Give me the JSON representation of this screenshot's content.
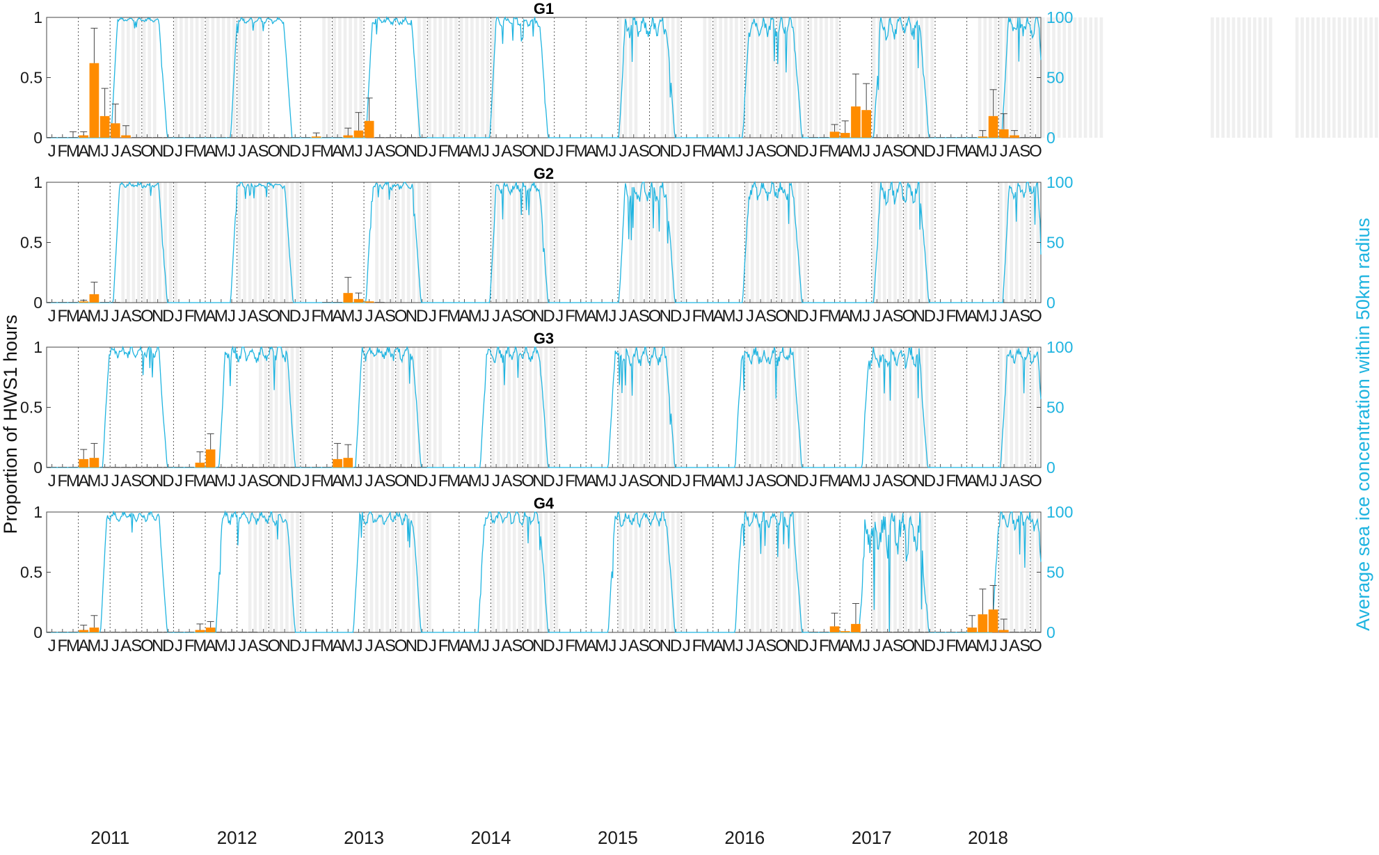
{
  "chart_data": {
    "type": "bar+line",
    "ylabel_left": "Proportion of HWS1 hours",
    "ylabel_right": "Average sea ice concentration within 50km radius",
    "left_yticks": [
      "0",
      "0.5",
      "1"
    ],
    "right_yticks": [
      "0",
      "50",
      "100"
    ],
    "ylim_left": [
      0,
      1
    ],
    "ylim_right": [
      0,
      100
    ],
    "month_letters": [
      "J",
      "F",
      "M",
      "A",
      "M",
      "J",
      "J",
      "A",
      "S",
      "O",
      "N",
      "D"
    ],
    "years": [
      "2011",
      "2012",
      "2013",
      "2014",
      "2015",
      "2016",
      "2017",
      "2018"
    ],
    "x_start": "2011-01",
    "x_end": "2018-10",
    "bar_color": "#ff8c00",
    "line_color": "#1fb4e0",
    "shade_color": "#efefef",
    "panels": [
      {
        "title": "G1",
        "shade_ranges": [
          [
            7,
            10
          ],
          [
            12,
            20
          ],
          [
            26,
            30
          ],
          [
            35,
            42
          ],
          [
            54,
            56
          ],
          [
            58,
            60
          ],
          [
            62,
            75
          ],
          [
            78,
            84
          ],
          [
            88,
            100
          ],
          [
            110,
            116
          ],
          [
            118,
            126
          ],
          [
            128,
            135
          ],
          [
            137,
            140
          ],
          [
            142,
            146
          ],
          [
            148,
            156
          ]
        ],
        "ice_periods": [
          [
            6.6,
            10.9,
            [
              97,
              99
            ]
          ],
          [
            17.9,
            22.7,
            [
              96,
              99
            ]
          ],
          [
            30.7,
            34.8,
            [
              95,
              99
            ]
          ],
          [
            42.4,
            46.9,
            [
              94,
              99
            ]
          ],
          [
            54.6,
            58.9,
            [
              86,
              97
            ]
          ],
          [
            66.3,
            70.9,
            [
              88,
              98
            ]
          ],
          [
            78.7,
            82.9,
            [
              86,
              98
            ]
          ],
          [
            90.8,
            94.1,
            [
              88,
              99
            ]
          ]
        ],
        "bars": [
          [
            1,
            0
          ],
          [
            2,
            0
          ],
          [
            3,
            0
          ],
          [
            4,
            0.02
          ],
          [
            5,
            0.62
          ],
          [
            6,
            0.18
          ],
          [
            7,
            0.12
          ],
          [
            8,
            0.02
          ],
          [
            9,
            0
          ],
          [
            10,
            0
          ],
          [
            11,
            0
          ],
          [
            12,
            0
          ],
          [
            13,
            0
          ],
          [
            14,
            0
          ],
          [
            15,
            0
          ],
          [
            16,
            0
          ],
          [
            17,
            0
          ],
          [
            18,
            0
          ],
          [
            19,
            0
          ],
          [
            20,
            0
          ],
          [
            21,
            0
          ],
          [
            22,
            0
          ],
          [
            23,
            0
          ],
          [
            24,
            0
          ],
          [
            25,
            0
          ],
          [
            26,
            0.01
          ],
          [
            27,
            0
          ],
          [
            28,
            0
          ],
          [
            29,
            0.02
          ],
          [
            30,
            0.06
          ],
          [
            31,
            0.14
          ],
          [
            32,
            0
          ],
          [
            33,
            0
          ],
          [
            34,
            0
          ],
          [
            35,
            0
          ],
          [
            36,
            0
          ],
          [
            73,
            0
          ],
          [
            74,
            0
          ],
          [
            75,
            0.05
          ],
          [
            76,
            0.04
          ],
          [
            77,
            0.26
          ],
          [
            78,
            0.23
          ],
          [
            79,
            0
          ],
          [
            80,
            0
          ],
          [
            81,
            0
          ],
          [
            82,
            0
          ],
          [
            83,
            0
          ],
          [
            84,
            0
          ],
          [
            85,
            0
          ],
          [
            86,
            0
          ],
          [
            87,
            0
          ],
          [
            88,
            0
          ],
          [
            89,
            0.01
          ],
          [
            90,
            0.18
          ],
          [
            91,
            0.07
          ],
          [
            92,
            0.02
          ],
          [
            93,
            0
          ],
          [
            94,
            0
          ]
        ],
        "errors": [
          [
            3,
            0.05
          ],
          [
            4,
            0.05
          ],
          [
            5,
            0.91
          ],
          [
            6,
            0.41
          ],
          [
            7,
            0.28
          ],
          [
            8,
            0.1
          ],
          [
            26,
            0.04
          ],
          [
            29,
            0.08
          ],
          [
            30,
            0.21
          ],
          [
            31,
            0.33
          ],
          [
            75,
            0.11
          ],
          [
            76,
            0.14
          ],
          [
            77,
            0.53
          ],
          [
            78,
            0.45
          ],
          [
            89,
            0.06
          ],
          [
            90,
            0.4
          ],
          [
            91,
            0.2
          ],
          [
            92,
            0.06
          ]
        ]
      },
      {
        "title": "G2",
        "shade_ranges": [
          [
            7,
            12
          ],
          [
            18,
            24
          ],
          [
            31,
            36
          ],
          [
            42,
            48
          ],
          [
            55,
            60
          ],
          [
            66,
            72
          ],
          [
            78,
            84
          ],
          [
            90,
            94
          ]
        ],
        "ice_periods": [
          [
            6.8,
            10.9,
            [
              96,
              99
            ]
          ],
          [
            17.9,
            22.8,
            [
              96,
              99
            ]
          ],
          [
            30.7,
            34.9,
            [
              95,
              99
            ]
          ],
          [
            42.4,
            46.9,
            [
              92,
              99
            ]
          ],
          [
            54.6,
            58.9,
            [
              86,
              97
            ]
          ],
          [
            66.3,
            70.9,
            [
              88,
              98
            ]
          ],
          [
            78.7,
            82.9,
            [
              86,
              98
            ]
          ],
          [
            90.9,
            94,
            [
              90,
              99
            ]
          ]
        ],
        "bars": [
          [
            1,
            0
          ],
          [
            2,
            0
          ],
          [
            3,
            0
          ],
          [
            4,
            0.01
          ],
          [
            5,
            0.07
          ],
          [
            6,
            0
          ],
          [
            7,
            0
          ],
          [
            27,
            0
          ],
          [
            28,
            0
          ],
          [
            29,
            0.08
          ],
          [
            30,
            0.03
          ],
          [
            31,
            0.01
          ],
          [
            32,
            0
          ]
        ],
        "errors": [
          [
            4,
            0.02
          ],
          [
            5,
            0.17
          ],
          [
            29,
            0.21
          ],
          [
            30,
            0.08
          ]
        ]
      },
      {
        "title": "G3",
        "shade_ranges": [
          [
            20,
            24
          ],
          [
            30,
            37
          ],
          [
            42,
            48
          ],
          [
            54,
            60
          ],
          [
            66,
            72
          ],
          [
            78,
            84
          ],
          [
            90,
            94
          ]
        ],
        "ice_periods": [
          [
            5.8,
            10.9,
            [
              93,
              99
            ]
          ],
          [
            16.8,
            23,
            [
              90,
              99
            ]
          ],
          [
            29.7,
            34.9,
            [
              91,
              99
            ]
          ],
          [
            41.5,
            46.9,
            [
              90,
              99
            ]
          ],
          [
            53.6,
            58.9,
            [
              88,
              98
            ]
          ],
          [
            65.6,
            70.9,
            [
              88,
              98
            ]
          ],
          [
            77.6,
            82.8,
            [
              86,
              98
            ]
          ],
          [
            90.7,
            94,
            [
              88,
              97
            ]
          ]
        ],
        "bars": [
          [
            1,
            0
          ],
          [
            2,
            0
          ],
          [
            3,
            0
          ],
          [
            4,
            0.07
          ],
          [
            5,
            0.08
          ],
          [
            6,
            0
          ],
          [
            7,
            0
          ],
          [
            8,
            0
          ],
          [
            9,
            0
          ],
          [
            10,
            0
          ],
          [
            11,
            0
          ],
          [
            12,
            0
          ],
          [
            13,
            0
          ],
          [
            14,
            0
          ],
          [
            15,
            0.04
          ],
          [
            16,
            0.15
          ],
          [
            17,
            0
          ],
          [
            18,
            0
          ],
          [
            19,
            0
          ],
          [
            20,
            0
          ],
          [
            21,
            0
          ],
          [
            22,
            0
          ],
          [
            23,
            0
          ],
          [
            24,
            0
          ],
          [
            25,
            0
          ],
          [
            26,
            0
          ],
          [
            27,
            0
          ],
          [
            28,
            0.07
          ],
          [
            29,
            0.08
          ],
          [
            30,
            0
          ],
          [
            31,
            0
          ],
          [
            32,
            0
          ],
          [
            33,
            0
          ],
          [
            34,
            0
          ],
          [
            35,
            0
          ],
          [
            36,
            0
          ]
        ],
        "errors": [
          [
            4,
            0.15
          ],
          [
            5,
            0.2
          ],
          [
            15,
            0.13
          ],
          [
            16,
            0.28
          ],
          [
            28,
            0.2
          ],
          [
            29,
            0.19
          ]
        ]
      },
      {
        "title": "G4",
        "shade_ranges": [
          [
            19,
            24
          ],
          [
            30,
            36
          ],
          [
            42,
            48
          ],
          [
            54,
            60
          ],
          [
            66,
            72
          ],
          [
            78,
            84
          ],
          [
            90,
            94
          ]
        ],
        "ice_periods": [
          [
            5.6,
            10.9,
            [
              94,
              99
            ]
          ],
          [
            16.5,
            23,
            [
              92,
              99
            ]
          ],
          [
            29.5,
            34.9,
            [
              92,
              99
            ]
          ],
          [
            41.3,
            46.9,
            [
              92,
              99
            ]
          ],
          [
            53.6,
            58.9,
            [
              90,
              98
            ]
          ],
          [
            65.6,
            70.9,
            [
              90,
              98
            ]
          ],
          [
            77.3,
            82.9,
            [
              70,
              96
            ]
          ],
          [
            89.9,
            94,
            [
              88,
              98
            ]
          ]
        ],
        "bars": [
          [
            1,
            0
          ],
          [
            2,
            0
          ],
          [
            3,
            0
          ],
          [
            4,
            0.02
          ],
          [
            5,
            0.04
          ],
          [
            6,
            0
          ],
          [
            7,
            0
          ],
          [
            8,
            0
          ],
          [
            9,
            0
          ],
          [
            10,
            0
          ],
          [
            11,
            0
          ],
          [
            12,
            0
          ],
          [
            13,
            0
          ],
          [
            14,
            0
          ],
          [
            15,
            0.02
          ],
          [
            16,
            0.04
          ],
          [
            17,
            0
          ],
          [
            18,
            0
          ],
          [
            19,
            0
          ],
          [
            20,
            0
          ],
          [
            73,
            0
          ],
          [
            74,
            0
          ],
          [
            75,
            0.05
          ],
          [
            76,
            0.01
          ],
          [
            77,
            0.07
          ],
          [
            78,
            0
          ],
          [
            79,
            0
          ],
          [
            80,
            0
          ],
          [
            81,
            0
          ],
          [
            82,
            0
          ],
          [
            83,
            0
          ],
          [
            84,
            0
          ],
          [
            85,
            0
          ],
          [
            86,
            0
          ],
          [
            87,
            0
          ],
          [
            88,
            0.04
          ],
          [
            89,
            0.15
          ],
          [
            90,
            0.19
          ],
          [
            91,
            0.02
          ],
          [
            92,
            0
          ],
          [
            93,
            0
          ],
          [
            94,
            0
          ]
        ],
        "errors": [
          [
            4,
            0.06
          ],
          [
            5,
            0.14
          ],
          [
            15,
            0.07
          ],
          [
            16,
            0.09
          ],
          [
            75,
            0.16
          ],
          [
            77,
            0.24
          ],
          [
            88,
            0.14
          ],
          [
            89,
            0.36
          ],
          [
            90,
            0.39
          ],
          [
            91,
            0.11
          ]
        ]
      }
    ]
  }
}
